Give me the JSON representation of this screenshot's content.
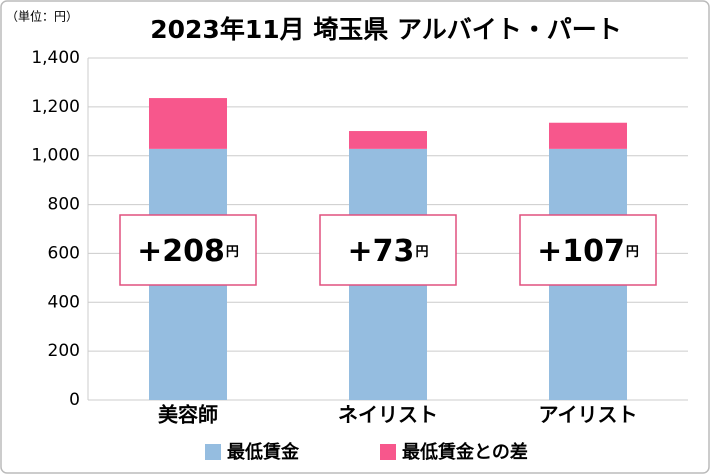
{
  "chart_data": {
    "type": "stacked_bar",
    "title": "2023年11月 埼玉県 アルバイト・パート",
    "unit_label": "（単位：円）",
    "categories": [
      "美容師",
      "ネイリスト",
      "アイリスト"
    ],
    "series": [
      {
        "name": "最低賃金",
        "color": "#95bde0",
        "values": [
          1028,
          1028,
          1028
        ]
      },
      {
        "name": "最低賃金との差",
        "color": "#f7578c",
        "values": [
          208,
          73,
          107
        ],
        "value_labels": [
          "+208",
          "+73",
          "+107"
        ],
        "value_label_suffix": "円"
      }
    ],
    "ylim": [
      0,
      1400
    ],
    "yticks": [
      0,
      200,
      400,
      600,
      800,
      {
        "value": 1000,
        "label": "1,000"
      },
      {
        "value": 1200,
        "label": "1,200"
      },
      {
        "value": 1400,
        "label": "1,400"
      }
    ],
    "grid": true
  }
}
